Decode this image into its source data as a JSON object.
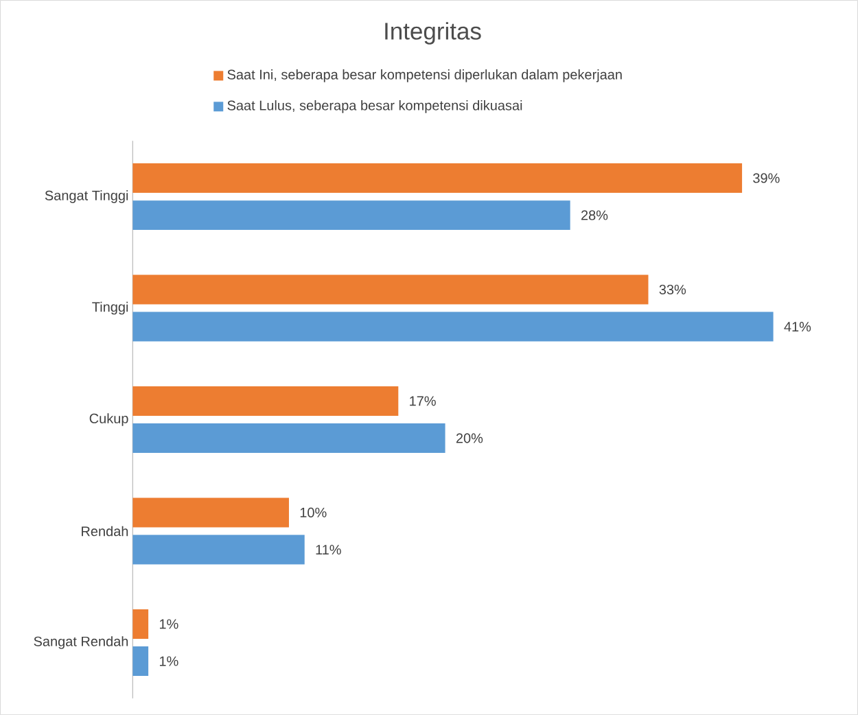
{
  "chart_data": {
    "type": "bar",
    "orientation": "horizontal",
    "title": "Integritas",
    "categories": [
      "Sangat Tinggi",
      "Tinggi",
      "Cukup",
      "Rendah",
      "Sangat Rendah"
    ],
    "series": [
      {
        "name": "Saat Ini, seberapa besar kompetensi diperlukan dalam pekerjaan",
        "color": "#ed7d31",
        "values": [
          39,
          33,
          17,
          10,
          1
        ],
        "value_labels": [
          "39%",
          "33%",
          "17%",
          "10%",
          "1%"
        ]
      },
      {
        "name": "Saat Lulus, seberapa besar kompetensi dikuasai",
        "color": "#5b9bd5",
        "values": [
          28,
          41,
          20,
          11,
          1
        ],
        "value_labels": [
          "28%",
          "41%",
          "20%",
          "11%",
          "1%"
        ]
      }
    ],
    "legend": "top"
  }
}
